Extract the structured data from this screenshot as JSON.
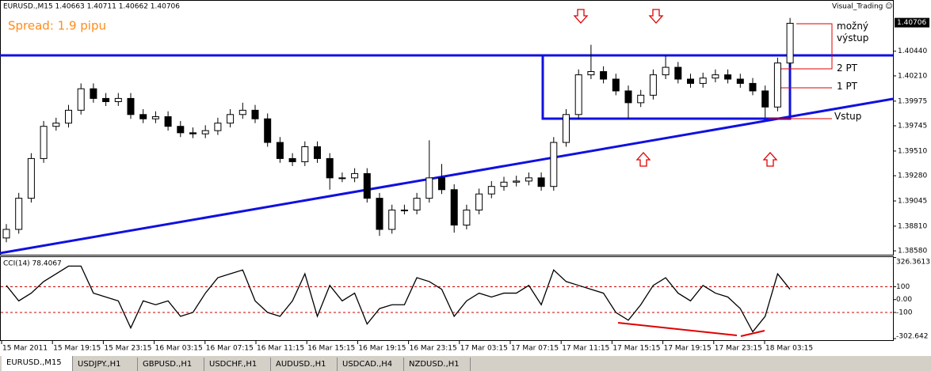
{
  "header": {
    "title": "EURUSD.,M15  1.40663 1.40711 1.40662 1.40706",
    "spread": "Spread: 1.9 pipu",
    "brand": "Visual_Trading ☺"
  },
  "chart_data": [
    {
      "type": "candlestick",
      "color": "#000000",
      "open": [
        1.387,
        1.3878,
        1.3907,
        1.3944,
        1.3974,
        1.3977,
        1.3989,
        1.4009,
        1.4,
        1.3997,
        1.4,
        1.3985,
        1.3981,
        1.3983,
        1.3974,
        1.3968,
        1.3967,
        1.397,
        1.3977,
        1.3985,
        1.3989,
        1.3981,
        1.3959,
        1.3944,
        1.3941,
        1.3955,
        1.3944,
        1.3926,
        1.3926,
        1.393,
        1.3907,
        1.3878,
        1.3896,
        1.3896,
        1.3907,
        1.3926,
        1.3915,
        1.3882,
        1.3896,
        1.3911,
        1.3918,
        1.3922,
        1.3923,
        1.3926,
        1.3918,
        1.3959,
        1.3985,
        1.4022,
        1.4025,
        1.4018,
        1.4007,
        1.3996,
        1.4003,
        1.4022,
        1.4029,
        1.4018,
        1.4014,
        1.4019,
        1.4022,
        1.4018,
        1.4014,
        1.4007,
        1.3992,
        1.4033
      ],
      "high": [
        1.3883,
        1.3912,
        1.3949,
        1.3979,
        1.3982,
        1.3994,
        1.4014,
        1.4014,
        1.4005,
        1.4005,
        1.4005,
        1.399,
        1.3988,
        1.3988,
        1.3979,
        1.3973,
        1.3975,
        1.3982,
        1.399,
        1.3996,
        1.3994,
        1.3986,
        1.3964,
        1.3949,
        1.396,
        1.396,
        1.3949,
        1.3931,
        1.3935,
        1.3935,
        1.3912,
        1.3901,
        1.3901,
        1.3912,
        1.3961,
        1.3939,
        1.392,
        1.3901,
        1.3916,
        1.3923,
        1.3927,
        1.3928,
        1.3931,
        1.3931,
        1.3964,
        1.399,
        1.4027,
        1.405,
        1.403,
        1.4023,
        1.4012,
        1.4008,
        1.4027,
        1.404,
        1.4034,
        1.4023,
        1.4024,
        1.4027,
        1.4027,
        1.4023,
        1.4019,
        1.4012,
        1.4038,
        1.4075
      ],
      "low": [
        1.3866,
        1.3874,
        1.3903,
        1.394,
        1.397,
        1.3973,
        1.3985,
        1.3996,
        1.3993,
        1.3993,
        1.3981,
        1.3977,
        1.3977,
        1.397,
        1.3964,
        1.3963,
        1.3963,
        1.3966,
        1.3973,
        1.3981,
        1.3977,
        1.3955,
        1.394,
        1.3937,
        1.3937,
        1.394,
        1.3915,
        1.3922,
        1.3922,
        1.3903,
        1.3872,
        1.3874,
        1.3892,
        1.3892,
        1.3903,
        1.3911,
        1.3875,
        1.3878,
        1.3892,
        1.3907,
        1.3914,
        1.3918,
        1.3919,
        1.3914,
        1.3914,
        1.3955,
        1.3981,
        1.4018,
        1.4014,
        1.4003,
        1.3981,
        1.3992,
        1.3999,
        1.4018,
        1.4014,
        1.401,
        1.401,
        1.4015,
        1.4014,
        1.401,
        1.4003,
        1.3982,
        1.3988,
        1.4029
      ],
      "close": [
        1.3878,
        1.3907,
        1.3944,
        1.3974,
        1.3977,
        1.3989,
        1.4009,
        1.4,
        1.3997,
        1.4,
        1.3985,
        1.3981,
        1.3983,
        1.3974,
        1.3968,
        1.3967,
        1.397,
        1.3977,
        1.3985,
        1.3989,
        1.3981,
        1.3959,
        1.3944,
        1.3941,
        1.3955,
        1.3944,
        1.3926,
        1.3926,
        1.393,
        1.3907,
        1.3878,
        1.3896,
        1.3896,
        1.3907,
        1.3926,
        1.3915,
        1.3882,
        1.3896,
        1.3911,
        1.3918,
        1.3922,
        1.3923,
        1.3926,
        1.3918,
        1.3959,
        1.3985,
        1.4022,
        1.4025,
        1.4018,
        1.4007,
        1.3996,
        1.4003,
        1.4022,
        1.4029,
        1.4018,
        1.4014,
        1.4019,
        1.4022,
        1.4018,
        1.4014,
        1.4007,
        1.3992,
        1.4033,
        1.407
      ],
      "ylim": [
        1.38544,
        1.40917
      ],
      "yticks": [
        {
          "value": 1.4044,
          "label": "1.40440"
        },
        {
          "value": 1.4021,
          "label": "1.40210"
        },
        1.39975,
        1.39745,
        {
          "value": 1.3951,
          "label": "1.39510"
        },
        {
          "value": 1.3928,
          "label": "1.39280"
        },
        1.39045,
        {
          "value": 1.3881,
          "label": "1.38810"
        },
        {
          "value": 1.3858,
          "label": "1.38580"
        }
      ],
      "current_price": 1.40706,
      "annotations": [
        "možný výstup",
        "2 PT",
        "1 PT",
        "Vstup"
      ],
      "time_labels": [
        "15 Mar 2011",
        "15 Mar 19:15",
        "15 Mar 23:15",
        "16 Mar 03:15",
        "16 Mar 07:15",
        "16 Mar 11:15",
        "16 Mar 15:15",
        "16 Mar 19:15",
        "16 Mar 23:15",
        "17 Mar 03:15",
        "17 Mar 07:15",
        "17 Mar 11:15",
        "17 Mar 15:15",
        "17 Mar 19:15",
        "17 Mar 23:15",
        "18 Mar 03:15"
      ]
    },
    {
      "type": "line",
      "title": "CCI(14) 78.4067",
      "color": "#000000",
      "values": [
        110,
        -10,
        50,
        140,
        200,
        260,
        260,
        50,
        20,
        -10,
        -220,
        -10,
        -40,
        -10,
        -130,
        -100,
        50,
        170,
        200,
        230,
        -10,
        -100,
        -130,
        -10,
        200,
        -130,
        110,
        -10,
        50,
        -190,
        -70,
        -40,
        -40,
        170,
        140,
        80,
        -130,
        -10,
        50,
        20,
        50,
        50,
        110,
        -40,
        230,
        140,
        110,
        80,
        50,
        -100,
        -160,
        -40,
        110,
        170,
        50,
        -10,
        110,
        50,
        20,
        -70,
        -250,
        -130,
        200,
        80
      ],
      "ylim": [
        -315,
        330
      ],
      "yticks": [
        326.3613,
        100,
        {
          "value": 0,
          "label": "0.00"
        },
        -100,
        -302.642
      ],
      "levels": [
        100,
        -100
      ],
      "level_color": "#cc0000"
    }
  ],
  "tabs": [
    "EURUSD.,M15",
    "USDJPY.,H1",
    "GBPUSD.,H1",
    "USDCHF.,H1",
    "AUDUSD.,H1",
    "USDCAD.,H4",
    "NZDUSD.,H1"
  ]
}
